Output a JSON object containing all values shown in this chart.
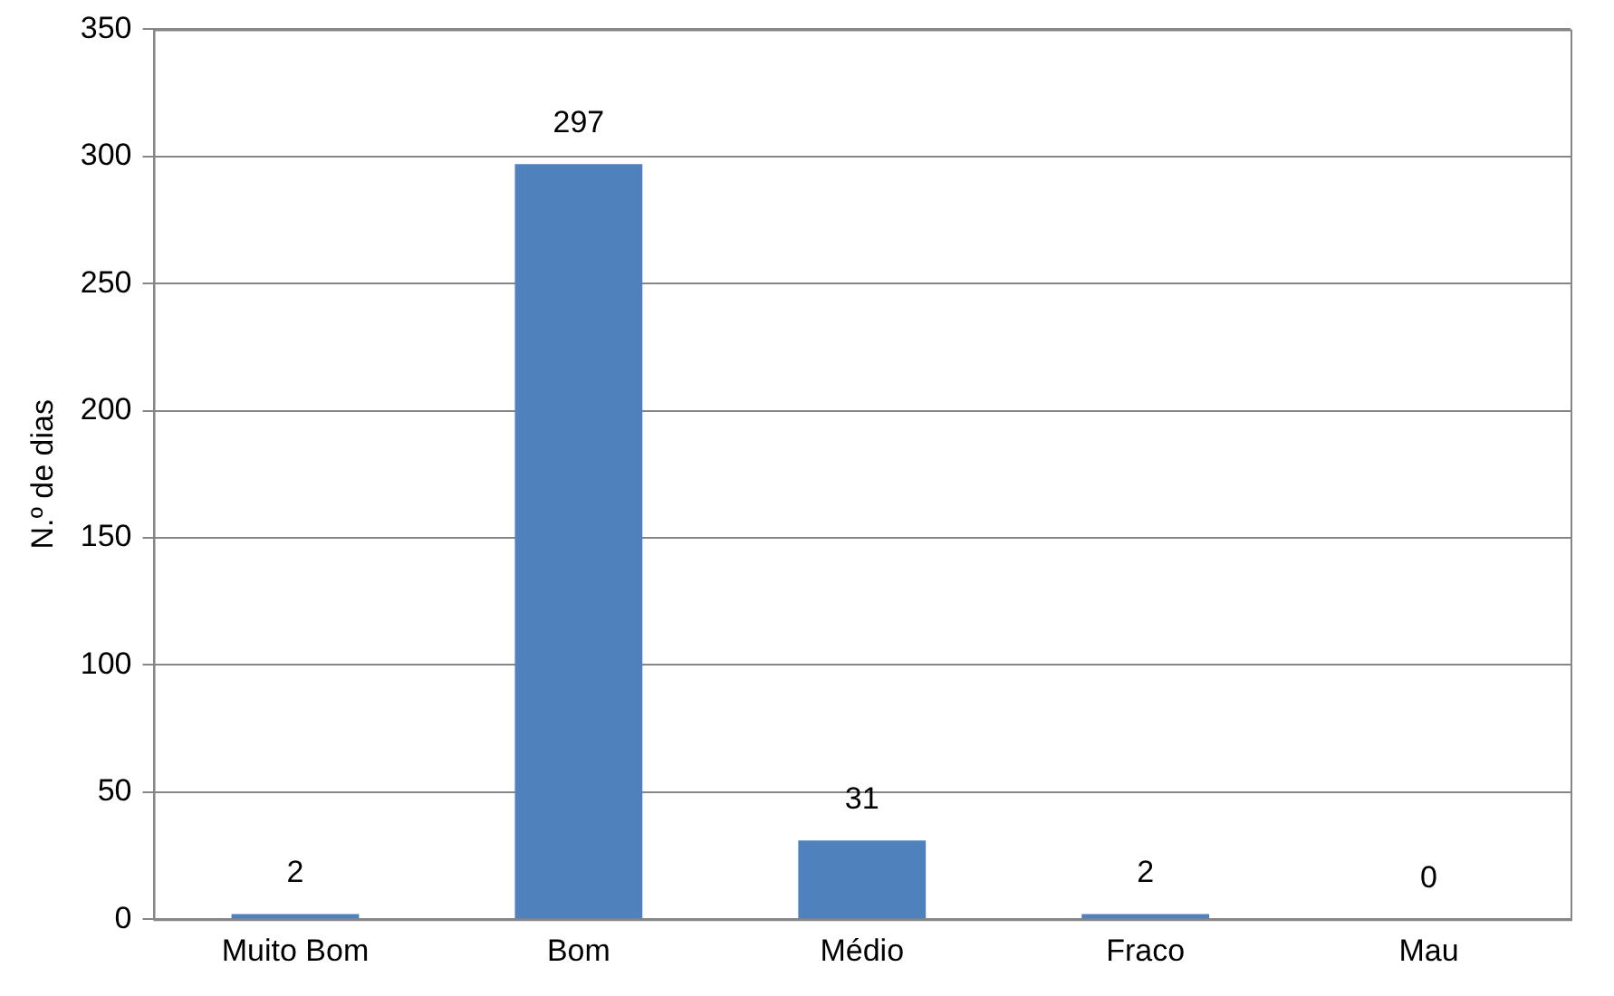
{
  "chart_data": {
    "type": "bar",
    "ylabel": "N.º de dias",
    "categories": [
      "Muito Bom",
      "Bom",
      "Médio",
      "Fraco",
      "Mau"
    ],
    "values": [
      2,
      297,
      31,
      2,
      0
    ],
    "color": "#4f81bd",
    "ylim": [
      0,
      350
    ],
    "yticks": [
      0,
      50,
      100,
      150,
      200,
      250,
      300,
      350
    ],
    "grid": "y",
    "data_labels": true,
    "legend": false
  }
}
